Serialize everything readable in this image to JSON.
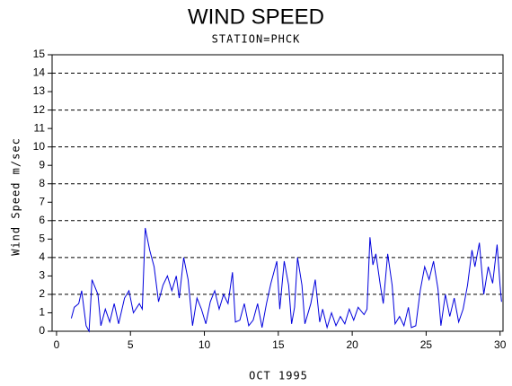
{
  "chart_data": {
    "type": "line",
    "title": "WIND SPEED",
    "subtitle": "STATION=PHCK",
    "x_label": "OCT 1995",
    "y_label": "Wind Speed m/sec",
    "color": "#0000dd",
    "x": [
      1.0,
      1.2,
      1.5,
      1.7,
      2.0,
      2.2,
      2.4,
      2.8,
      3.0,
      3.3,
      3.6,
      3.9,
      4.2,
      4.6,
      4.9,
      5.2,
      5.6,
      5.8,
      6.0,
      6.3,
      6.6,
      6.9,
      7.2,
      7.5,
      7.8,
      8.1,
      8.3,
      8.6,
      8.9,
      9.2,
      9.5,
      9.8,
      10.1,
      10.4,
      10.7,
      11.0,
      11.3,
      11.6,
      11.9,
      12.1,
      12.4,
      12.7,
      13.0,
      13.3,
      13.6,
      13.9,
      14.2,
      14.5,
      14.9,
      15.1,
      15.4,
      15.7,
      15.9,
      16.1,
      16.3,
      16.6,
      16.8,
      17.2,
      17.5,
      17.8,
      18.0,
      18.3,
      18.6,
      18.9,
      19.2,
      19.5,
      19.8,
      20.1,
      20.4,
      20.8,
      21.0,
      21.2,
      21.4,
      21.6,
      21.9,
      22.1,
      22.4,
      22.7,
      22.9,
      23.2,
      23.5,
      23.8,
      24.0,
      24.3,
      24.6,
      24.9,
      25.2,
      25.5,
      25.8,
      26.0,
      26.3,
      26.6,
      26.9,
      27.2,
      27.5,
      27.8,
      28.1,
      28.3,
      28.6,
      28.9,
      29.2,
      29.5,
      29.8,
      30.0,
      30.1
    ],
    "values": [
      0.7,
      1.3,
      1.5,
      2.2,
      0.3,
      0.0,
      2.8,
      2.0,
      0.3,
      1.2,
      0.5,
      1.5,
      0.4,
      1.8,
      2.2,
      1.0,
      1.5,
      1.2,
      5.6,
      4.4,
      3.5,
      1.6,
      2.5,
      3.0,
      2.2,
      3.0,
      1.8,
      4.0,
      2.8,
      0.3,
      1.8,
      1.2,
      0.4,
      1.6,
      2.2,
      1.2,
      2.0,
      1.5,
      3.2,
      0.5,
      0.6,
      1.5,
      0.3,
      0.6,
      1.5,
      0.2,
      1.5,
      2.6,
      3.8,
      1.2,
      3.8,
      2.5,
      0.4,
      1.3,
      4.0,
      2.5,
      0.4,
      1.5,
      2.8,
      0.5,
      1.2,
      0.2,
      1.0,
      0.3,
      0.8,
      0.4,
      1.2,
      0.6,
      1.3,
      0.9,
      1.2,
      5.1,
      3.6,
      4.2,
      2.5,
      1.5,
      4.2,
      2.5,
      0.4,
      0.8,
      0.3,
      1.3,
      0.2,
      0.3,
      2.2,
      3.5,
      2.8,
      3.8,
      2.3,
      0.3,
      2.0,
      0.8,
      1.8,
      0.5,
      1.2,
      2.5,
      4.4,
      3.5,
      4.8,
      2.0,
      3.5,
      2.6,
      4.7,
      2.5,
      1.6
    ],
    "xlim": [
      -0.3,
      30.2
    ],
    "xticks": [
      0,
      5,
      10,
      15,
      20,
      25,
      30
    ],
    "ylim": [
      0,
      15
    ],
    "yticks": [
      0,
      1,
      2,
      3,
      4,
      5,
      6,
      7,
      8,
      9,
      10,
      11,
      12,
      13,
      14,
      15
    ],
    "grid": true
  }
}
